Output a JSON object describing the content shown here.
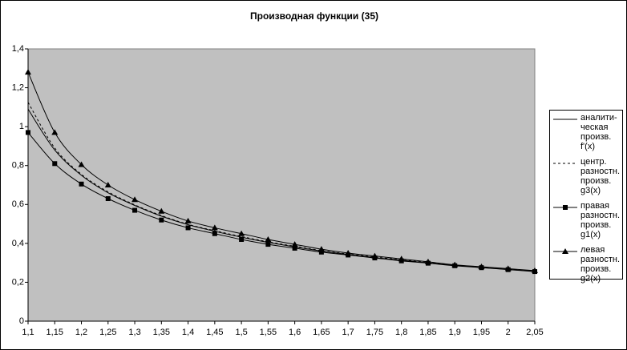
{
  "chart_data": {
    "type": "line",
    "title": "Производная функции (35)",
    "categories": [
      "1,1",
      "1,15",
      "1,2",
      "1,25",
      "1,3",
      "1,35",
      "1,4",
      "1,45",
      "1,5",
      "1,55",
      "1,6",
      "1,65",
      "1,7",
      "1,75",
      "1,8",
      "1,85",
      "1,9",
      "1,95",
      "2",
      "2,05"
    ],
    "series": [
      {
        "name": "аналити-ческая произв. f'(x)",
        "color": "#000000",
        "line_style": "solid",
        "marker": "none",
        "values": [
          1.09,
          0.88,
          0.75,
          0.66,
          0.595,
          0.54,
          0.496,
          0.462,
          0.432,
          0.405,
          0.382,
          0.361,
          0.343,
          0.327,
          0.313,
          0.3,
          0.287,
          0.276,
          0.266,
          0.257
        ]
      },
      {
        "name": "центр. разностн. произв. g3(x)",
        "color": "#000000",
        "line_style": "dashed",
        "marker": "none",
        "values": [
          1.125,
          0.89,
          0.755,
          0.665,
          0.598,
          0.543,
          0.498,
          0.465,
          0.435,
          0.408,
          0.385,
          0.363,
          0.345,
          0.33,
          0.315,
          0.302,
          0.288,
          0.278,
          0.268,
          0.258
        ]
      },
      {
        "name": "правая разностн. произв. g1(x)",
        "color": "#000000",
        "line_style": "solid",
        "marker": "square",
        "values": [
          0.97,
          0.81,
          0.705,
          0.63,
          0.57,
          0.52,
          0.48,
          0.45,
          0.42,
          0.395,
          0.375,
          0.355,
          0.34,
          0.325,
          0.31,
          0.298,
          0.285,
          0.275,
          0.265,
          0.255
        ]
      },
      {
        "name": "левая разностн. произв. g2(x)",
        "color": "#000000",
        "line_style": "solid",
        "marker": "triangle",
        "values": [
          1.28,
          0.97,
          0.805,
          0.7,
          0.625,
          0.565,
          0.515,
          0.48,
          0.45,
          0.42,
          0.395,
          0.37,
          0.35,
          0.335,
          0.32,
          0.305,
          0.29,
          0.28,
          0.27,
          0.26
        ]
      }
    ],
    "ylim": [
      0,
      1.4
    ],
    "yticks": [
      0,
      {
        "value": 0.2,
        "label": "0,2"
      },
      {
        "value": 0.4,
        "label": "0,4"
      },
      {
        "value": 0.6,
        "label": "0,6"
      },
      {
        "value": 0.8,
        "label": "0,8"
      },
      1,
      {
        "value": 1.2,
        "label": "1,2"
      },
      {
        "value": 1.4,
        "label": "1,4"
      }
    ],
    "plot_background": "#c0c0c0",
    "legend": "right"
  }
}
